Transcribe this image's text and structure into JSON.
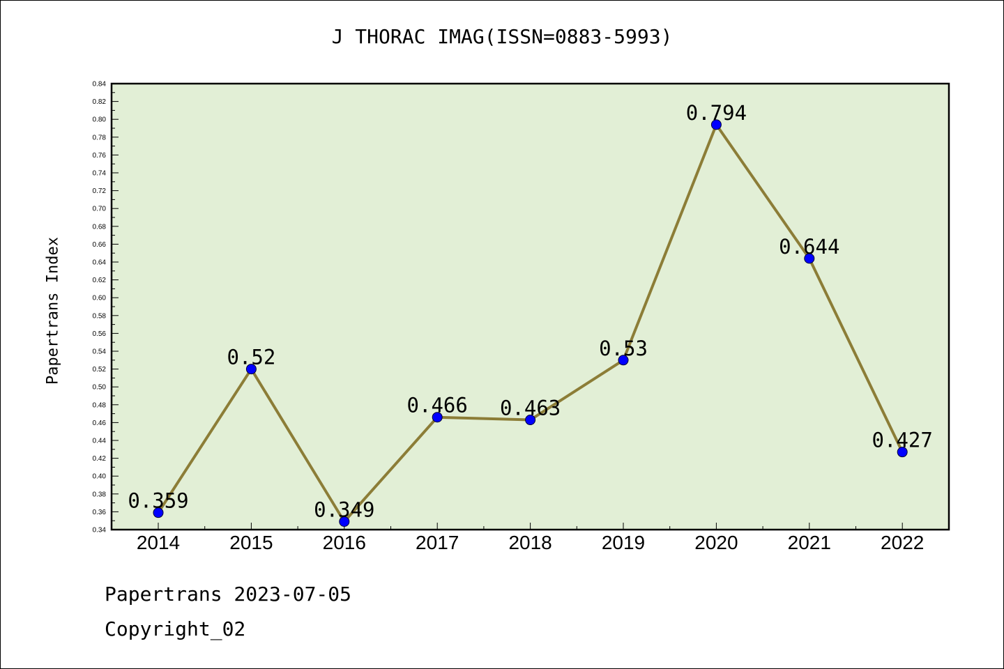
{
  "chart_data": {
    "type": "line",
    "title": "J THORAC IMAG(ISSN=0883-5993)",
    "xlabel": "",
    "ylabel": "Papertrans Index",
    "categories": [
      "2014",
      "2015",
      "2016",
      "2017",
      "2018",
      "2019",
      "2020",
      "2021",
      "2022"
    ],
    "series": [
      {
        "values": [
          0.359,
          0.52,
          0.349,
          0.466,
          0.463,
          0.53,
          0.794,
          0.644,
          0.427
        ],
        "labels": [
          "0.359",
          "0.52",
          "0.349",
          "0.466",
          "0.463",
          "0.53",
          "0.794",
          "0.644",
          "0.427"
        ]
      }
    ],
    "ylim": [
      0.34,
      0.84
    ],
    "yticks": [
      "0.34",
      "0.36",
      "0.38",
      "0.40",
      "0.42",
      "0.44",
      "0.46",
      "0.48",
      "0.50",
      "0.52",
      "0.54",
      "0.56",
      "0.58",
      "0.60",
      "0.62",
      "0.64",
      "0.66",
      "0.68",
      "0.70",
      "0.72",
      "0.74",
      "0.76",
      "0.78",
      "0.80",
      "0.82",
      "0.84"
    ],
    "grid": false,
    "colors": {
      "plot_background": "#e2efd6",
      "line": "#8c7d37",
      "marker": "#0000ff"
    }
  },
  "footer": {
    "line1": "Papertrans 2023-07-05",
    "line2": "Copyright_02"
  }
}
